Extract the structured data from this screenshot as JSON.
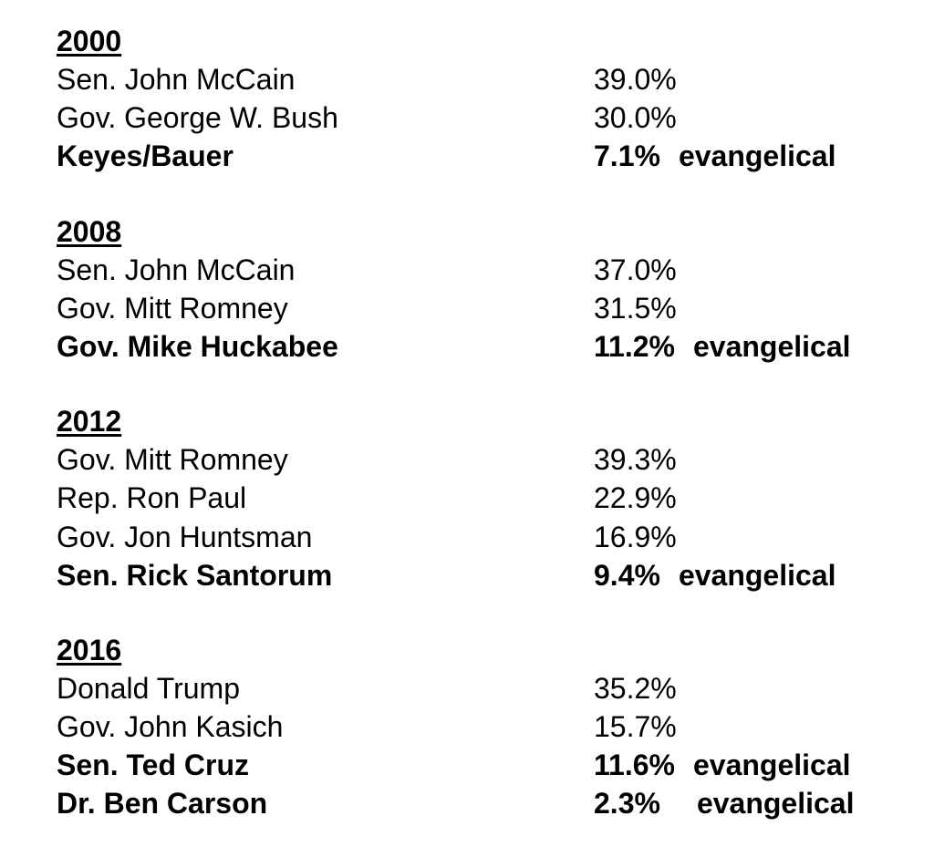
{
  "sections": [
    {
      "year": "2000",
      "rows": [
        {
          "name": "Sen. John McCain",
          "pct": "39.0%",
          "note": "",
          "bold": false
        },
        {
          "name": "Gov. George W. Bush",
          "pct": "30.0%",
          "note": "",
          "bold": false
        },
        {
          "name": "Keyes/Bauer",
          "pct": "7.1%",
          "note": "evangelical",
          "bold": true
        }
      ]
    },
    {
      "year": "2008",
      "rows": [
        {
          "name": "Sen. John McCain",
          "pct": "37.0%",
          "note": "",
          "bold": false
        },
        {
          "name": "Gov. Mitt Romney",
          "pct": "31.5%",
          "note": "",
          "bold": false
        },
        {
          "name": "Gov. Mike Huckabee",
          "pct": "11.2%",
          "note": "evangelical",
          "bold": true
        }
      ]
    },
    {
      "year": "2012",
      "rows": [
        {
          "name": "Gov. Mitt Romney",
          "pct": "39.3%",
          "note": "",
          "bold": false
        },
        {
          "name": "Rep. Ron Paul",
          "pct": "22.9%",
          "note": "",
          "bold": false
        },
        {
          "name": "Gov. Jon Huntsman",
          "pct": "16.9%",
          "note": "",
          "bold": false
        },
        {
          "name": "Sen. Rick Santorum",
          "pct": "9.4%",
          "note": "evangelical",
          "bold": true
        }
      ]
    },
    {
      "year": "2016",
      "rows": [
        {
          "name": "Donald Trump",
          "pct": "35.2%",
          "note": "",
          "bold": false
        },
        {
          "name": "Gov. John Kasich",
          "pct": "15.7%",
          "note": "",
          "bold": false
        },
        {
          "name": "Sen. Ted Cruz",
          "pct": "11.6%",
          "note": "evangelical",
          "bold": true
        },
        {
          "name": "Dr. Ben Carson",
          "pct": "2.3%",
          "note": "evangelical",
          "bold": true
        }
      ]
    }
  ]
}
